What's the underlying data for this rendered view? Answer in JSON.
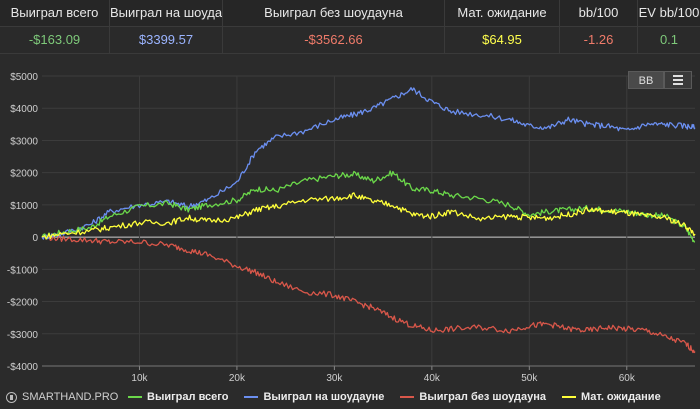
{
  "stats": {
    "headers": [
      "Выиграл всего",
      "Выиграл на шоудауне",
      "Выиграл без шоудауна",
      "Мат. ожидание",
      "bb/100",
      "EV bb/100"
    ],
    "values": [
      "-$163.09",
      "$3399.57",
      "-$3562.66",
      "$64.95",
      "-1.26",
      "0.1"
    ],
    "value_colors": [
      "#7ec97a",
      "#9bb4ff",
      "#f07b6a",
      "#ffff4d",
      "#f07b6a",
      "#7ec97a"
    ]
  },
  "toolbar": {
    "bb_label": "BB",
    "menu_icon": "menu-icon"
  },
  "brand": {
    "label": "SMARTHAND.PRO"
  },
  "colors": {
    "background": "#2b2b2b",
    "gridline": "#3c3c3c",
    "zero_line": "#d0d0d0",
    "total": "#6bd84a",
    "showdown": "#6b8ff0",
    "non_showdown": "#d9574a",
    "ev": "#ffff3a"
  },
  "chart_data": {
    "type": "line",
    "title": "",
    "xlabel": "",
    "ylabel": "",
    "xlim": [
      0,
      67000
    ],
    "ylim": [
      -4000,
      5000
    ],
    "x_ticks": [
      10000,
      20000,
      30000,
      40000,
      50000,
      60000
    ],
    "x_tick_labels": [
      "10k",
      "20k",
      "30k",
      "40k",
      "50k",
      "60k"
    ],
    "y_ticks": [
      -4000,
      -3000,
      -2000,
      -1000,
      0,
      1000,
      2000,
      3000,
      4000,
      5000
    ],
    "y_tick_labels": [
      "-$4000",
      "-$3000",
      "-$2000",
      "-$1000",
      "0",
      "$1000",
      "$2000",
      "$3000",
      "$4000",
      "$5000"
    ],
    "grid": true,
    "legend_position": "bottom",
    "x": [
      0,
      2000,
      5000,
      7000,
      10000,
      13000,
      15000,
      17000,
      20000,
      22000,
      24000,
      27000,
      30000,
      32000,
      34000,
      36000,
      38000,
      40000,
      42000,
      45000,
      48000,
      50000,
      52000,
      54000,
      56000,
      58000,
      60000,
      62000,
      64000,
      66000,
      67000
    ],
    "series": [
      {
        "name": "Выиграл всего",
        "values": [
          0,
          150,
          300,
          650,
          950,
          1050,
          850,
          1000,
          1150,
          1500,
          1450,
          1750,
          1900,
          1950,
          1750,
          2000,
          1500,
          1450,
          1300,
          1200,
          1000,
          700,
          800,
          850,
          900,
          850,
          800,
          700,
          650,
          300,
          -150
        ]
      },
      {
        "name": "Выиграл на шоудауне",
        "values": [
          0,
          100,
          400,
          800,
          1000,
          1100,
          950,
          1150,
          1700,
          2700,
          3100,
          3300,
          3650,
          3800,
          4000,
          4300,
          4600,
          4200,
          3900,
          3800,
          3650,
          3450,
          3400,
          3650,
          3500,
          3450,
          3300,
          3500,
          3500,
          3450,
          3400
        ]
      },
      {
        "name": "Выиграл без шоудауна",
        "values": [
          0,
          -50,
          -100,
          -150,
          -150,
          -250,
          -400,
          -550,
          -900,
          -1100,
          -1400,
          -1700,
          -1800,
          -2000,
          -2200,
          -2500,
          -2750,
          -2900,
          -2850,
          -2800,
          -2900,
          -2750,
          -2700,
          -2850,
          -2900,
          -2800,
          -2850,
          -2900,
          -3100,
          -3300,
          -3550
        ]
      },
      {
        "name": "Мат. ожидание",
        "values": [
          0,
          100,
          200,
          300,
          450,
          450,
          600,
          500,
          600,
          850,
          950,
          1150,
          1200,
          1300,
          1100,
          1000,
          700,
          650,
          800,
          550,
          650,
          600,
          600,
          700,
          850,
          800,
          750,
          650,
          600,
          350,
          100
        ]
      }
    ]
  }
}
